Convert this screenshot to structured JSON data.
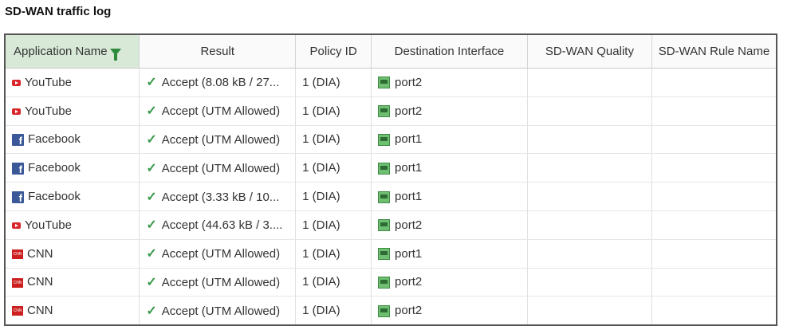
{
  "title": "SD-WAN traffic log",
  "columns": [
    "Application Name",
    "Result",
    "Policy ID",
    "Destination Interface",
    "SD-WAN Quality",
    "SD-WAN Rule Name"
  ],
  "filter_icon": "filter-icon",
  "accent_color": "#d8e9d8",
  "rows": [
    {
      "app": "YouTube",
      "icon": "youtube",
      "result": "Accept (8.08 kB / 27...",
      "policy": "1 (DIA)",
      "iface": "port2",
      "quality": "",
      "rule": ""
    },
    {
      "app": "YouTube",
      "icon": "youtube",
      "result": "Accept (UTM Allowed)",
      "policy": "1 (DIA)",
      "iface": "port2",
      "quality": "",
      "rule": ""
    },
    {
      "app": "Facebook",
      "icon": "facebook",
      "result": "Accept (UTM Allowed)",
      "policy": "1 (DIA)",
      "iface": "port1",
      "quality": "",
      "rule": ""
    },
    {
      "app": "Facebook",
      "icon": "facebook",
      "result": "Accept (UTM Allowed)",
      "policy": "1 (DIA)",
      "iface": "port1",
      "quality": "",
      "rule": ""
    },
    {
      "app": "Facebook",
      "icon": "facebook",
      "result": "Accept (3.33 kB / 10...",
      "policy": "1 (DIA)",
      "iface": "port1",
      "quality": "",
      "rule": ""
    },
    {
      "app": "YouTube",
      "icon": "youtube",
      "result": "Accept (44.63 kB / 3....",
      "policy": "1 (DIA)",
      "iface": "port2",
      "quality": "",
      "rule": ""
    },
    {
      "app": "CNN",
      "icon": "cnn",
      "result": "Accept (UTM Allowed)",
      "policy": "1 (DIA)",
      "iface": "port1",
      "quality": "",
      "rule": ""
    },
    {
      "app": "CNN",
      "icon": "cnn",
      "result": "Accept (UTM Allowed)",
      "policy": "1 (DIA)",
      "iface": "port2",
      "quality": "",
      "rule": ""
    },
    {
      "app": "CNN",
      "icon": "cnn",
      "result": "Accept (UTM Allowed)",
      "policy": "1 (DIA)",
      "iface": "port2",
      "quality": "",
      "rule": ""
    }
  ]
}
